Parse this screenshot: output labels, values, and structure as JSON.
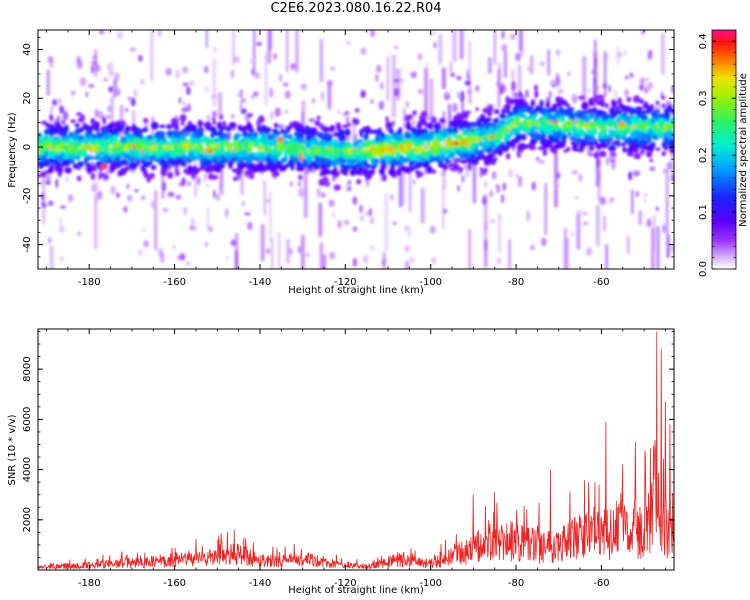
{
  "title": "C2E6.2023.080.16.22.R04",
  "chart_data": [
    {
      "type": "heatmap",
      "xlabel": "Height of straight line (km)",
      "ylabel": "Frequency (Hz)",
      "xlim": [
        -192,
        -43
      ],
      "ylim": [
        -50,
        48
      ],
      "xticks": [
        -180,
        -160,
        -140,
        -120,
        -100,
        -80,
        -60
      ],
      "yticks": [
        -40,
        -20,
        0,
        20,
        40
      ],
      "colorbar": {
        "label": "Normalized spectral amplitude",
        "range": [
          0.0,
          0.42
        ],
        "ticks": [
          0.0,
          0.1,
          0.2,
          0.3,
          0.4
        ]
      },
      "band_center_hz": [
        {
          "x": -192,
          "y": 0
        },
        {
          "x": -140,
          "y": 0
        },
        {
          "x": -120,
          "y": -2
        },
        {
          "x": -100,
          "y": 0
        },
        {
          "x": -85,
          "y": 4
        },
        {
          "x": -80,
          "y": 10
        },
        {
          "x": -60,
          "y": 8
        },
        {
          "x": -43,
          "y": 8
        }
      ],
      "band_halfwidth_hz": 12,
      "peak_amplitude_region_km": [
        -115,
        -90
      ]
    },
    {
      "type": "line",
      "xlabel": "Height of straight line (km)",
      "ylabel": "SNR (10 * v/v)",
      "xlim": [
        -192,
        -43
      ],
      "ylim": [
        0,
        9600
      ],
      "xticks": [
        -180,
        -160,
        -140,
        -120,
        -100,
        -80,
        -60
      ],
      "yticks": [
        2000,
        4000,
        6000,
        8000
      ],
      "color": "#ee2222",
      "series": [
        {
          "envelope": [
            {
              "x": -192,
              "y": 200
            },
            {
              "x": -180,
              "y": 350
            },
            {
              "x": -170,
              "y": 500
            },
            {
              "x": -160,
              "y": 650
            },
            {
              "x": -150,
              "y": 900
            },
            {
              "x": -145,
              "y": 1100
            },
            {
              "x": -140,
              "y": 700
            },
            {
              "x": -135,
              "y": 600
            },
            {
              "x": -130,
              "y": 750
            },
            {
              "x": -125,
              "y": 500
            },
            {
              "x": -120,
              "y": 300
            },
            {
              "x": -115,
              "y": 250
            },
            {
              "x": -108,
              "y": 700
            },
            {
              "x": -100,
              "y": 450
            },
            {
              "x": -95,
              "y": 900
            },
            {
              "x": -90,
              "y": 1500
            },
            {
              "x": -85,
              "y": 1800
            },
            {
              "x": -80,
              "y": 2000
            },
            {
              "x": -75,
              "y": 1700
            },
            {
              "x": -70,
              "y": 1800
            },
            {
              "x": -65,
              "y": 2300
            },
            {
              "x": -60,
              "y": 2400
            },
            {
              "x": -55,
              "y": 2600
            },
            {
              "x": -50,
              "y": 3000
            },
            {
              "x": -47,
              "y": 3800
            },
            {
              "x": -45,
              "y": 3000
            },
            {
              "x": -43,
              "y": 2000
            }
          ],
          "spikes": [
            {
              "x": -146,
              "y": 1600
            },
            {
              "x": -90,
              "y": 3000
            },
            {
              "x": -85,
              "y": 3100
            },
            {
              "x": -72,
              "y": 4000
            },
            {
              "x": -63,
              "y": 3500
            },
            {
              "x": -59,
              "y": 5900
            },
            {
              "x": -55,
              "y": 4200
            },
            {
              "x": -52,
              "y": 5100
            },
            {
              "x": -47,
              "y": 9500
            },
            {
              "x": -46,
              "y": 8800
            },
            {
              "x": -45,
              "y": 6700
            },
            {
              "x": -44,
              "y": 5800
            }
          ]
        }
      ]
    }
  ]
}
